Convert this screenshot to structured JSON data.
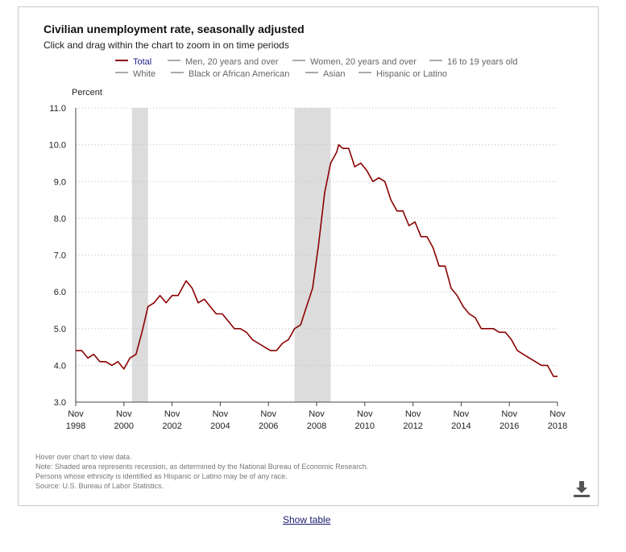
{
  "header": {
    "title": "Civilian unemployment rate, seasonally adjusted",
    "subtitle": "Click and drag within the chart to zoom in on time periods"
  },
  "legend": {
    "row1": [
      "Total",
      "Men, 20 years and over",
      "Women, 20 years and over",
      "16 to 19 years old"
    ],
    "row2": [
      "White",
      "Black or African American",
      "Asian",
      "Hispanic or Latino"
    ],
    "active": "Total"
  },
  "notes": [
    "Hover over chart to view data.",
    "Note: Shaded area represents recession, as determined by the National Bureau of Economic Research.",
    "Persons whose ethnicity is identified as Hispanic or Latino may be of any race.",
    "Source: U.S. Bureau of Labor Statistics."
  ],
  "footer": {
    "show_table": "Show table"
  },
  "download": {
    "icon": "download-icon"
  },
  "colors": {
    "series": "#8b0000",
    "recession": "#dcdcdc",
    "grid": "#bdbdbd",
    "axis": "#444444"
  },
  "chart_data": {
    "type": "line",
    "title": "Civilian unemployment rate, seasonally adjusted",
    "ylabel": "Percent",
    "ylim": [
      3.0,
      11.0
    ],
    "yticks": [
      "3.0",
      "4.0",
      "5.0",
      "6.0",
      "7.0",
      "8.0",
      "9.0",
      "10.0",
      "11.0"
    ],
    "xticks": [
      {
        "x": "1998-11",
        "month": "Nov",
        "year": "1998"
      },
      {
        "x": "2000-11",
        "month": "Nov",
        "year": "2000"
      },
      {
        "x": "2002-11",
        "month": "Nov",
        "year": "2002"
      },
      {
        "x": "2004-11",
        "month": "Nov",
        "year": "2004"
      },
      {
        "x": "2006-11",
        "month": "Nov",
        "year": "2006"
      },
      {
        "x": "2008-11",
        "month": "Nov",
        "year": "2008"
      },
      {
        "x": "2010-11",
        "month": "Nov",
        "year": "2010"
      },
      {
        "x": "2012-11",
        "month": "Nov",
        "year": "2012"
      },
      {
        "x": "2014-11",
        "month": "Nov",
        "year": "2014"
      },
      {
        "x": "2016-11",
        "month": "Nov",
        "year": "2016"
      },
      {
        "x": "2018-11",
        "month": "Nov",
        "year": "2018"
      }
    ],
    "xrange": [
      "1998-11",
      "2018-11"
    ],
    "grid": true,
    "recessions": [
      [
        "2001-03",
        "2001-11"
      ],
      [
        "2007-12",
        "2009-06"
      ]
    ],
    "series": [
      {
        "name": "Total",
        "x": [
          "1998-11",
          "1999-02",
          "1999-05",
          "1999-08",
          "1999-11",
          "2000-02",
          "2000-05",
          "2000-08",
          "2000-11",
          "2001-02",
          "2001-05",
          "2001-08",
          "2001-11",
          "2002-02",
          "2002-05",
          "2002-08",
          "2002-11",
          "2003-02",
          "2003-06",
          "2003-09",
          "2003-12",
          "2004-03",
          "2004-06",
          "2004-09",
          "2004-12",
          "2005-03",
          "2005-06",
          "2005-09",
          "2005-12",
          "2006-03",
          "2006-06",
          "2006-09",
          "2006-12",
          "2007-03",
          "2007-06",
          "2007-09",
          "2007-12",
          "2008-03",
          "2008-06",
          "2008-09",
          "2008-12",
          "2009-03",
          "2009-06",
          "2009-09",
          "2009-10",
          "2009-12",
          "2010-03",
          "2010-06",
          "2010-09",
          "2010-12",
          "2011-03",
          "2011-06",
          "2011-09",
          "2011-12",
          "2012-03",
          "2012-06",
          "2012-09",
          "2012-12",
          "2013-03",
          "2013-06",
          "2013-09",
          "2013-12",
          "2014-03",
          "2014-06",
          "2014-09",
          "2014-12",
          "2015-03",
          "2015-06",
          "2015-09",
          "2015-12",
          "2016-03",
          "2016-06",
          "2016-09",
          "2016-12",
          "2017-03",
          "2017-06",
          "2017-09",
          "2017-12",
          "2018-03",
          "2018-06",
          "2018-09",
          "2018-11"
        ],
        "values": [
          4.4,
          4.4,
          4.2,
          4.3,
          4.1,
          4.1,
          4.0,
          4.1,
          3.9,
          4.2,
          4.3,
          4.9,
          5.6,
          5.7,
          5.9,
          5.7,
          5.9,
          5.9,
          6.3,
          6.1,
          5.7,
          5.8,
          5.6,
          5.4,
          5.4,
          5.2,
          5.0,
          5.0,
          4.9,
          4.7,
          4.6,
          4.5,
          4.4,
          4.4,
          4.6,
          4.7,
          5.0,
          5.1,
          5.6,
          6.1,
          7.3,
          8.7,
          9.5,
          9.8,
          10.0,
          9.9,
          9.9,
          9.4,
          9.5,
          9.3,
          9.0,
          9.1,
          9.0,
          8.5,
          8.2,
          8.2,
          7.8,
          7.9,
          7.5,
          7.5,
          7.2,
          6.7,
          6.7,
          6.1,
          5.9,
          5.6,
          5.4,
          5.3,
          5.0,
          5.0,
          5.0,
          4.9,
          4.9,
          4.7,
          4.4,
          4.3,
          4.2,
          4.1,
          4.0,
          4.0,
          3.7,
          3.7
        ]
      }
    ]
  }
}
